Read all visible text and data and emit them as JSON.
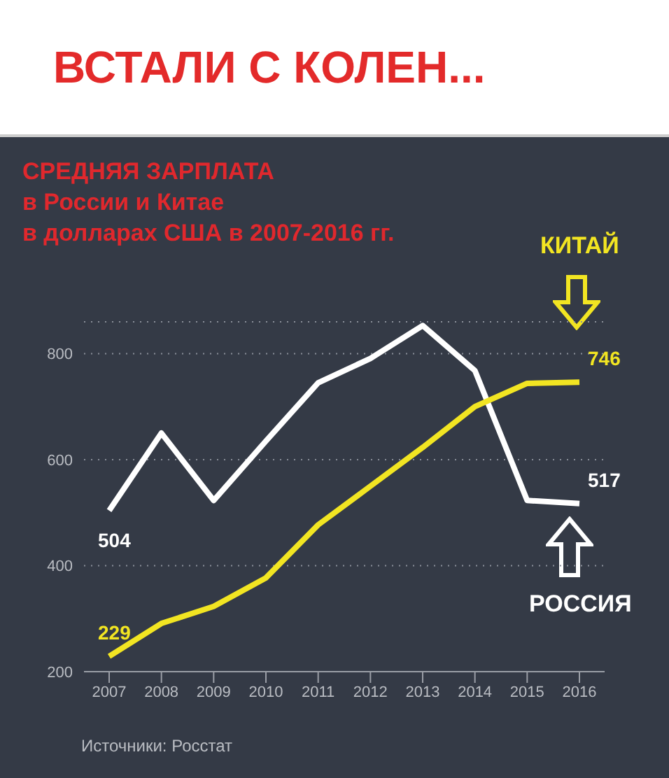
{
  "chart_data": {
    "type": "line",
    "title": "ВСТАЛИ С КОЛЕН...",
    "subtitle": "СРЕДНЯЯ ЗАРПЛАТА\nв России и Китае\nв долларах США в 2007-2016 гг.",
    "categories": [
      "2007",
      "2008",
      "2009",
      "2010",
      "2011",
      "2012",
      "2013",
      "2014",
      "2015",
      "2016"
    ],
    "series": [
      {
        "name": "РОССИЯ",
        "color": "#ffffff",
        "values": [
          504,
          650,
          523,
          635,
          745,
          791,
          853,
          768,
          523,
          517
        ],
        "value_labels": [
          "504",
          null,
          null,
          null,
          null,
          null,
          null,
          null,
          null,
          "517"
        ]
      },
      {
        "name": "КИТАЙ",
        "color": "#f2e522",
        "values": [
          229,
          291,
          323,
          377,
          477,
          550,
          623,
          700,
          744,
          746
        ],
        "value_labels": [
          "229",
          null,
          null,
          null,
          null,
          null,
          null,
          null,
          null,
          "746"
        ]
      }
    ],
    "ylim": [
      200,
      860
    ],
    "yticks": [
      200,
      400,
      600,
      800
    ],
    "grid": "y",
    "marker": "none",
    "line_style": "solid",
    "annotations": [
      "Источники: Росстат"
    ]
  }
}
